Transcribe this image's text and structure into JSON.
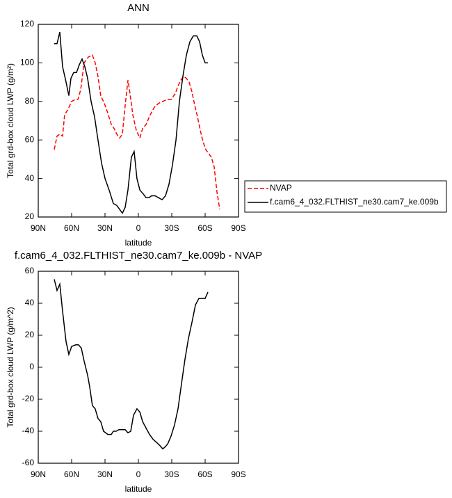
{
  "chart_data": [
    {
      "type": "line",
      "title": "ANN",
      "xlabel": "latitude",
      "ylabel": "Total grd-box cloud LWP (g/m²)",
      "xlim": [
        90,
        -90
      ],
      "ylim": [
        20,
        120
      ],
      "xticks": [
        {
          "value": 90,
          "label": "90N"
        },
        {
          "value": 60,
          "label": "60N"
        },
        {
          "value": 30,
          "label": "30N"
        },
        0,
        {
          "value": -30,
          "label": "30S"
        },
        {
          "value": -60,
          "label": "60S"
        },
        {
          "value": -90,
          "label": "90S"
        }
      ],
      "yticks": [
        20,
        40,
        60,
        80,
        100,
        120
      ],
      "legend": "right",
      "series": [
        {
          "name": "NVAP",
          "color": "#ff0000",
          "dashed": true,
          "x": [
            75.6,
            73.1,
            70.6,
            68.1,
            66.3,
            63.1,
            60,
            56.9,
            54.4,
            51.9,
            48.8,
            45,
            41.3,
            38.8,
            36.3,
            33.8,
            30.6,
            27.5,
            24.4,
            21.9,
            19.4,
            16.9,
            14.4,
            11.9,
            9.4,
            7.5,
            5,
            1.9,
            -1.3,
            -3.8,
            -6.9,
            -10.6,
            -14.4,
            -18.1,
            -21.9,
            -25.6,
            -29.4,
            -33.1,
            -35.6,
            -38.1,
            -40.6,
            -43.1,
            -45.6,
            -48.1,
            -50.6,
            -53.1,
            -55.6,
            -58.1,
            -60.6,
            -63.1,
            -65.6,
            -68.1,
            -70.6,
            -73.1
          ],
          "values": [
            55,
            62,
            63,
            62,
            73,
            76,
            80,
            81,
            81,
            86,
            100,
            103,
            104,
            100,
            93,
            83,
            79,
            74,
            68,
            66,
            63,
            61,
            63,
            78,
            91,
            84,
            73,
            65,
            61,
            66,
            68,
            73,
            77,
            79,
            80,
            81,
            81,
            84,
            88,
            91,
            93,
            92,
            90,
            85,
            78,
            72,
            65,
            59,
            55,
            53,
            51,
            46,
            33,
            24
          ]
        },
        {
          "name": "f.cam6_4_032.FLTHIST_ne30.cam7_ke.009b",
          "color": "#000000",
          "dashed": false,
          "x": [
            75.6,
            73.1,
            70.6,
            68.1,
            65,
            62.5,
            60.6,
            58.1,
            55.6,
            53.1,
            50.6,
            48.1,
            45.6,
            42.5,
            39.4,
            36.3,
            33.1,
            30,
            26.3,
            22.5,
            19.4,
            16.9,
            14.4,
            11.9,
            9.4,
            6.3,
            3.8,
            1.3,
            -1.3,
            -4.4,
            -6.9,
            -9.4,
            -11.9,
            -15,
            -18.1,
            -21.3,
            -24.4,
            -27.5,
            -30.6,
            -33.8,
            -36.9,
            -40,
            -43.1,
            -46.3,
            -49.4,
            -52.5,
            -55,
            -57.5,
            -60,
            -62.5
          ],
          "values": [
            110,
            110,
            116,
            98,
            90,
            83,
            92,
            95,
            95,
            99,
            102,
            98,
            92,
            80,
            72,
            60,
            48,
            40,
            34,
            27,
            26,
            24,
            22,
            25,
            34,
            51,
            54,
            40,
            34,
            32,
            30,
            30,
            31,
            31,
            30,
            29,
            31,
            37,
            47,
            60,
            80,
            93,
            104,
            111,
            114,
            114,
            111,
            104,
            100,
            100
          ]
        }
      ]
    },
    {
      "type": "line",
      "title": "f.cam6_4_032.FLTHIST_ne30.cam7_ke.009b - NVAP",
      "xlabel": "latitude",
      "ylabel": "Total grd-box cloud LWP (g/m^2)",
      "xlim": [
        90,
        -90
      ],
      "ylim": [
        -60,
        60
      ],
      "xticks": [
        {
          "value": 90,
          "label": "90N"
        },
        {
          "value": 60,
          "label": "60N"
        },
        {
          "value": 30,
          "label": "30N"
        },
        0,
        {
          "value": -30,
          "label": "30S"
        },
        {
          "value": -60,
          "label": "60S"
        },
        {
          "value": -90,
          "label": "90S"
        }
      ],
      "yticks": [
        -60,
        -40,
        -20,
        0,
        20,
        40,
        60
      ],
      "color": "#000000",
      "x": [
        75.6,
        73.1,
        70.6,
        68.1,
        65,
        62.5,
        60,
        56.3,
        53.8,
        51.3,
        48.8,
        45.6,
        43.8,
        41.3,
        38.8,
        36.3,
        33.8,
        31.3,
        27.5,
        24.4,
        22.5,
        20,
        17.5,
        15,
        11.9,
        9.4,
        6.9,
        4.4,
        1.3,
        -1.3,
        -3.8,
        -6.9,
        -10,
        -13.1,
        -16.3,
        -19.4,
        -21.9,
        -23.8,
        -26.3,
        -29.4,
        -32.5,
        -35.6,
        -38.8,
        -41.9,
        -45,
        -48.1,
        -51.3,
        -54.4,
        -57.5,
        -60,
        -62.5
      ],
      "values": [
        55,
        48,
        52,
        35,
        16,
        8,
        13,
        14,
        14,
        12,
        4,
        -5,
        -12,
        -24,
        -26,
        -32,
        -34,
        -40,
        -42,
        -42,
        -40,
        -40,
        -39,
        -39,
        -39,
        -41,
        -40,
        -30,
        -26,
        -28,
        -34,
        -38,
        -42,
        -45,
        -47,
        -49,
        -51,
        -50,
        -48,
        -43,
        -36,
        -26,
        -10,
        5,
        18,
        28,
        39,
        43,
        43,
        43,
        47
      ]
    }
  ]
}
